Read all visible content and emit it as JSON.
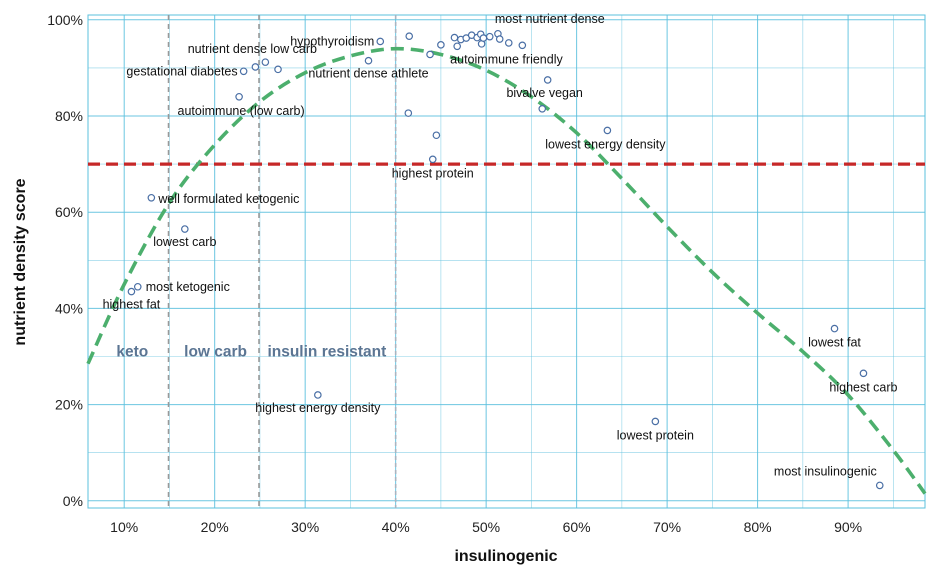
{
  "chart_data": {
    "type": "scatter",
    "xlabel": "insulinogenic",
    "ylabel": "nutrient density score",
    "xlim": [
      6,
      98.5
    ],
    "ylim": [
      -1.5,
      101
    ],
    "x_ticks": [
      {
        "value": 10,
        "label": "10%"
      },
      {
        "value": 20,
        "label": "20%"
      },
      {
        "value": 30,
        "label": "30%"
      },
      {
        "value": 40,
        "label": "40%"
      },
      {
        "value": 50,
        "label": "50%"
      },
      {
        "value": 60,
        "label": "60%"
      },
      {
        "value": 70,
        "label": "70%"
      },
      {
        "value": 80,
        "label": "80%"
      },
      {
        "value": 90,
        "label": "90%"
      }
    ],
    "y_ticks": [
      {
        "value": 0,
        "label": "0%"
      },
      {
        "value": 20,
        "label": "20%"
      },
      {
        "value": 40,
        "label": "40%"
      },
      {
        "value": 60,
        "label": "60%"
      },
      {
        "value": 80,
        "label": "80%"
      },
      {
        "value": 100,
        "label": "100%"
      }
    ],
    "grid": true,
    "colors": {
      "grid": "#5bc0de",
      "points": "#4a6fa5",
      "trend": "#4caf6d",
      "threshold": "#c62828",
      "boundary": "#999999",
      "region_text": "#5b7593"
    },
    "points": [
      {
        "x": 10.8,
        "y": 43.5
      },
      {
        "x": 11.5,
        "y": 44.5
      },
      {
        "x": 13.0,
        "y": 63.0
      },
      {
        "x": 16.7,
        "y": 56.5
      },
      {
        "x": 22.7,
        "y": 84.0
      },
      {
        "x": 23.2,
        "y": 89.3
      },
      {
        "x": 24.5,
        "y": 90.2
      },
      {
        "x": 25.6,
        "y": 91.2
      },
      {
        "x": 27.0,
        "y": 89.7
      },
      {
        "x": 31.4,
        "y": 22.0
      },
      {
        "x": 37.0,
        "y": 91.5
      },
      {
        "x": 38.3,
        "y": 95.5
      },
      {
        "x": 41.4,
        "y": 80.6
      },
      {
        "x": 41.5,
        "y": 96.6
      },
      {
        "x": 43.8,
        "y": 92.8
      },
      {
        "x": 44.1,
        "y": 71.0
      },
      {
        "x": 44.5,
        "y": 76.0
      },
      {
        "x": 45.0,
        "y": 94.8
      },
      {
        "x": 46.5,
        "y": 96.3
      },
      {
        "x": 46.8,
        "y": 94.5
      },
      {
        "x": 47.2,
        "y": 95.9
      },
      {
        "x": 47.8,
        "y": 96.2
      },
      {
        "x": 48.4,
        "y": 96.8
      },
      {
        "x": 49.0,
        "y": 96.3
      },
      {
        "x": 49.4,
        "y": 97.0
      },
      {
        "x": 49.5,
        "y": 95.0
      },
      {
        "x": 49.7,
        "y": 96.2
      },
      {
        "x": 50.4,
        "y": 96.5
      },
      {
        "x": 51.3,
        "y": 97.1
      },
      {
        "x": 51.5,
        "y": 96.0
      },
      {
        "x": 52.5,
        "y": 95.2
      },
      {
        "x": 54.0,
        "y": 94.7
      },
      {
        "x": 56.2,
        "y": 81.5
      },
      {
        "x": 56.8,
        "y": 87.5
      },
      {
        "x": 63.4,
        "y": 77.0
      },
      {
        "x": 68.7,
        "y": 16.5
      },
      {
        "x": 88.5,
        "y": 35.8
      },
      {
        "x": 91.7,
        "y": 26.5
      },
      {
        "x": 93.5,
        "y": 3.2
      }
    ],
    "annotations": [
      {
        "text": "highest fat",
        "x": 10.8,
        "y": 43.5,
        "anchor": "middle",
        "dx": 0,
        "dy": 17
      },
      {
        "text": "most ketogenic",
        "x": 11.5,
        "y": 44.5,
        "anchor": "start",
        "dx": 8,
        "dy": 4
      },
      {
        "text": "well formulated ketogenic",
        "x": 13.0,
        "y": 63.0,
        "anchor": "start",
        "dx": 7,
        "dy": 5
      },
      {
        "text": "lowest carb",
        "x": 16.7,
        "y": 56.5,
        "anchor": "middle",
        "dx": 0,
        "dy": 17
      },
      {
        "text": "autoimmune (low carb)",
        "x": 22.7,
        "y": 84.0,
        "anchor": "middle",
        "dx": 2,
        "dy": 18
      },
      {
        "text": "gestational diabetes",
        "x": 23.2,
        "y": 89.3,
        "anchor": "end",
        "dx": -6,
        "dy": 4
      },
      {
        "text": "nutrient dense low carb",
        "x": 25.6,
        "y": 91.2,
        "anchor": "middle",
        "dx": -13,
        "dy": -9
      },
      {
        "text": "highest energy density",
        "x": 31.4,
        "y": 22.0,
        "anchor": "middle",
        "dx": 0,
        "dy": 17
      },
      {
        "text": "nutrient dense athlete",
        "x": 37.0,
        "y": 91.5,
        "anchor": "middle",
        "dx": 0,
        "dy": 17
      },
      {
        "text": "hypothyroidism",
        "x": 38.3,
        "y": 95.5,
        "anchor": "end",
        "dx": -6,
        "dy": 4
      },
      {
        "text": "highest protein",
        "x": 44.1,
        "y": 71.0,
        "anchor": "middle",
        "dx": 0,
        "dy": 18
      },
      {
        "text": "autoimmune friendly",
        "x": 46.8,
        "y": 94.5,
        "anchor": "start",
        "dx": -7,
        "dy": 17
      },
      {
        "text": "most nutrient dense",
        "x": 51.3,
        "y": 97.1,
        "anchor": "start",
        "dx": -3,
        "dy": -11
      },
      {
        "text": "bivalve vegan",
        "x": 56.8,
        "y": 87.5,
        "anchor": "middle",
        "dx": -3,
        "dy": 17
      },
      {
        "text": "lowest energy density",
        "x": 63.4,
        "y": 77.0,
        "anchor": "middle",
        "dx": -2,
        "dy": 18
      },
      {
        "text": "lowest protein",
        "x": 68.7,
        "y": 16.5,
        "anchor": "middle",
        "dx": 0,
        "dy": 18
      },
      {
        "text": "lowest fat",
        "x": 88.5,
        "y": 35.8,
        "anchor": "middle",
        "dx": 0,
        "dy": 18
      },
      {
        "text": "highest carb",
        "x": 91.7,
        "y": 26.5,
        "anchor": "middle",
        "dx": 0,
        "dy": 18
      },
      {
        "text": "most insulinogenic",
        "x": 93.5,
        "y": 3.2,
        "anchor": "end",
        "dx": -3,
        "dy": -10
      }
    ],
    "threshold_line": {
      "y": 70
    },
    "region_boundaries": [
      14.9,
      24.9,
      40.0
    ],
    "regions": [
      {
        "label": "keto",
        "x": 10.9,
        "y": 30
      },
      {
        "label": "low carb",
        "x": 20.1,
        "y": 30
      },
      {
        "label": "insulin resistant",
        "x": 32.4,
        "y": 30
      }
    ],
    "trend_curve": [
      {
        "x": 6,
        "y": 28.5
      },
      {
        "x": 10,
        "y": 45
      },
      {
        "x": 15,
        "y": 62
      },
      {
        "x": 20,
        "y": 74
      },
      {
        "x": 25,
        "y": 83
      },
      {
        "x": 30,
        "y": 89
      },
      {
        "x": 35,
        "y": 92.5
      },
      {
        "x": 40,
        "y": 94
      },
      {
        "x": 45,
        "y": 92.8
      },
      {
        "x": 50,
        "y": 89.5
      },
      {
        "x": 55,
        "y": 84
      },
      {
        "x": 60,
        "y": 76.5
      },
      {
        "x": 65,
        "y": 67
      },
      {
        "x": 70,
        "y": 57
      },
      {
        "x": 75,
        "y": 47.5
      },
      {
        "x": 80,
        "y": 39
      },
      {
        "x": 85,
        "y": 31
      },
      {
        "x": 90,
        "y": 22
      },
      {
        "x": 95,
        "y": 10.5
      },
      {
        "x": 98.5,
        "y": 1.5
      }
    ]
  }
}
